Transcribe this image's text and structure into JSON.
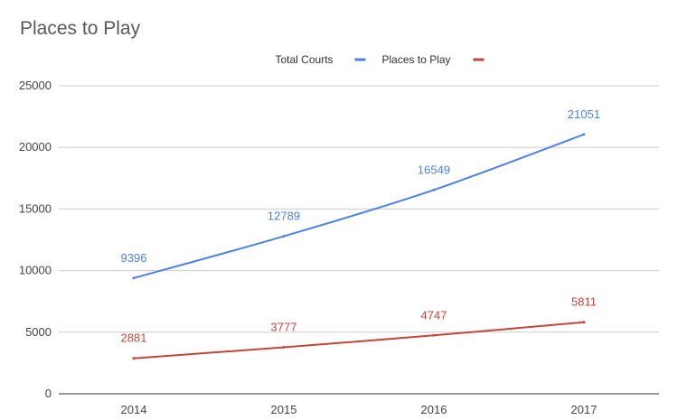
{
  "chart_data": {
    "type": "line",
    "title": "Places to Play",
    "categories": [
      "2014",
      "2015",
      "2016",
      "2017"
    ],
    "series": [
      {
        "name": "Total Courts",
        "color": "#4f81e0",
        "values": [
          9396,
          12789,
          16549,
          21051
        ]
      },
      {
        "name": "Places to Play",
        "color": "#c0473a",
        "values": [
          2881,
          3777,
          4747,
          5811
        ]
      }
    ],
    "ylim": [
      0,
      25000
    ],
    "yticks": [
      0,
      5000,
      10000,
      15000,
      20000,
      25000
    ],
    "grid": true,
    "legend_position": "top-center",
    "data_labels": true
  }
}
